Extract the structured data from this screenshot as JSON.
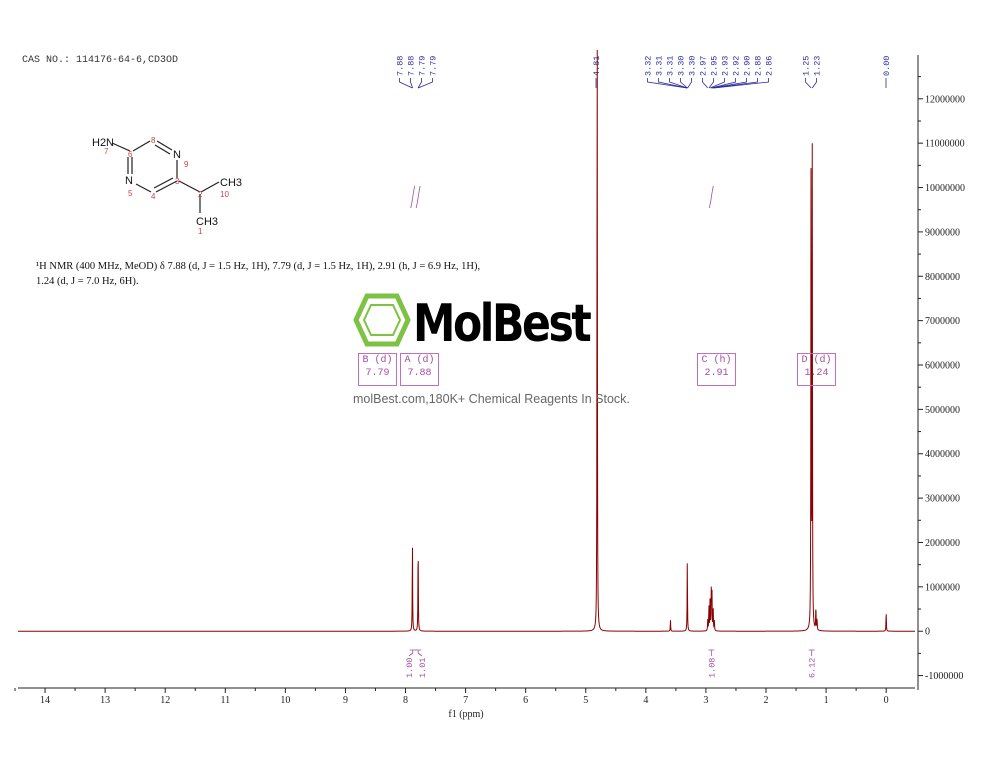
{
  "header": {
    "cas": "CAS NO.: 114176-64-6,CD3OD",
    "description_line1": "¹H NMR (400 MHz, MeOD) δ 7.88 (d, J = 1.5 Hz, 1H), 7.79 (d, J = 1.5 Hz, 1H), 2.91 (h, J = 6.9 Hz, 1H),",
    "description_line2": "1.24 (d, J = 7.0 Hz, 6H)."
  },
  "structure": {
    "atoms": {
      "nh2": "H2N",
      "n9": "N",
      "n5": "N",
      "ch3a": "CH3",
      "ch3b": "CH3"
    },
    "numbers": [
      "7",
      "6",
      "8",
      "9",
      "5",
      "4",
      "3",
      "2",
      "10",
      "1"
    ]
  },
  "watermark": {
    "logo": "MolBest",
    "tagline": "molBest.com,180K+ Chemical Reagents In Stock.",
    "logo_color": "#7dc242"
  },
  "multiplets": [
    {
      "label": "A (d)",
      "shift": "7.88"
    },
    {
      "label": "B (d)",
      "shift": "7.79"
    },
    {
      "label": "C (h)",
      "shift": "2.91"
    },
    {
      "label": "D (d)",
      "shift": "1.24"
    }
  ],
  "chart_data": {
    "type": "line",
    "xlabel": "f1 (ppm)",
    "ylabel": "",
    "xlim": [
      14.45,
      -0.48
    ],
    "ylim": [
      -1280000,
      13100000
    ],
    "x_ticks": [
      "14",
      "13",
      "12",
      "11",
      "10",
      "9",
      "8",
      "7",
      "6",
      "5",
      "4",
      "3",
      "2",
      "1",
      "0"
    ],
    "y_ticks": [
      "-1000000",
      "0",
      "1000000",
      "2000000",
      "3000000",
      "4000000",
      "5000000",
      "6000000",
      "7000000",
      "8000000",
      "9000000",
      "10000000",
      "11000000",
      "12000000"
    ],
    "grid": false,
    "line_color": "#8b0000",
    "annotation_color": "#2a2a9a",
    "integral_color": "#a050a0",
    "peak_labels": [
      {
        "group": [
          "7.88",
          "7.88",
          "7.79",
          "7.79"
        ],
        "ppm": [
          7.885,
          7.882,
          7.792,
          7.789
        ]
      },
      {
        "group": [
          "4.81"
        ],
        "ppm": [
          4.81
        ]
      },
      {
        "group": [
          "3.32",
          "3.31",
          "3.31",
          "3.30",
          "3.30",
          "2.97",
          "2.95",
          "2.93",
          "2.92",
          "2.90",
          "2.88",
          "2.86"
        ],
        "ppm": [
          3.315,
          3.313,
          3.31,
          3.307,
          3.305,
          2.97,
          2.95,
          2.93,
          2.91,
          2.9,
          2.88,
          2.86
        ]
      },
      {
        "group": [
          "1.25",
          "1.23"
        ],
        "ppm": [
          1.25,
          1.23
        ]
      },
      {
        "group": [
          "0.00"
        ],
        "ppm": [
          0.0
        ]
      }
    ],
    "peaks": [
      {
        "ppm": 7.885,
        "intensity": 2100000
      },
      {
        "ppm": 7.79,
        "intensity": 2050000
      },
      {
        "ppm": 4.81,
        "intensity": 15000000
      },
      {
        "ppm": 3.59,
        "intensity": 250000
      },
      {
        "ppm": 3.31,
        "intensity": 1600000
      },
      {
        "ppm": 2.97,
        "intensity": 250000
      },
      {
        "ppm": 2.95,
        "intensity": 600000
      },
      {
        "ppm": 2.93,
        "intensity": 900000
      },
      {
        "ppm": 2.91,
        "intensity": 1000000
      },
      {
        "ppm": 2.9,
        "intensity": 900000
      },
      {
        "ppm": 2.88,
        "intensity": 600000
      },
      {
        "ppm": 2.86,
        "intensity": 250000
      },
      {
        "ppm": 1.25,
        "intensity": 11000000
      },
      {
        "ppm": 1.23,
        "intensity": 10700000
      },
      {
        "ppm": 1.17,
        "intensity": 550000
      },
      {
        "ppm": 1.15,
        "intensity": 250000
      },
      {
        "ppm": 0.0,
        "intensity": 450000
      }
    ],
    "integrals": [
      {
        "ppm": 7.88,
        "value": "1.00"
      },
      {
        "ppm": 7.79,
        "value": "1.01"
      },
      {
        "ppm": 2.91,
        "value": "1.08"
      },
      {
        "ppm": 1.24,
        "value": "6.12"
      }
    ]
  }
}
